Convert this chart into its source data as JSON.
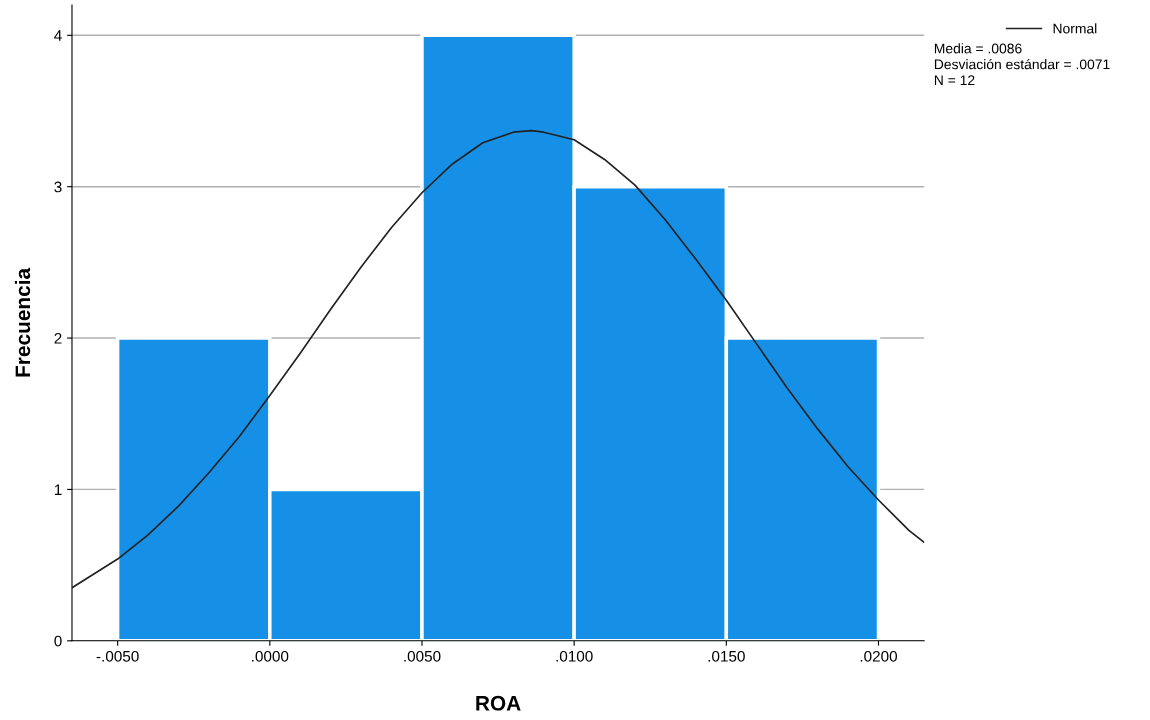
{
  "chart_data": {
    "type": "histogram",
    "xlabel": "ROA",
    "ylabel": "Frecuencia",
    "bins": [
      -0.005,
      0.0,
      0.005,
      0.01,
      0.015,
      0.02
    ],
    "values": [
      2,
      1,
      4,
      3,
      2
    ],
    "color": "#1590e6",
    "xlim": [
      -0.0065,
      0.0215
    ],
    "xticks": [
      {
        "value": -0.005,
        "label": "-.0050"
      },
      {
        "value": 0.0,
        "label": ".0000"
      },
      {
        "value": 0.005,
        "label": ".0050"
      },
      {
        "value": 0.01,
        "label": ".0100"
      },
      {
        "value": 0.015,
        "label": ".0150"
      },
      {
        "value": 0.02,
        "label": ".0200"
      }
    ],
    "ylim": [
      0,
      4.2
    ],
    "yticks": [
      0,
      1,
      2,
      3,
      4
    ],
    "grid": "y",
    "legend": "top right",
    "series": [
      {
        "type": "line",
        "name": "Normal",
        "color": "#222222",
        "x": [
          -0.0065,
          -0.005,
          -0.004,
          -0.003,
          -0.002,
          -0.001,
          0.0,
          0.001,
          0.002,
          0.003,
          0.004,
          0.005,
          0.006,
          0.007,
          0.008,
          0.0086,
          0.009,
          0.01,
          0.011,
          0.012,
          0.013,
          0.014,
          0.015,
          0.016,
          0.017,
          0.018,
          0.019,
          0.02,
          0.021,
          0.0215
        ],
        "values": [
          0.35,
          0.54,
          0.7,
          0.89,
          1.11,
          1.35,
          1.62,
          1.9,
          2.19,
          2.47,
          2.73,
          2.96,
          3.15,
          3.29,
          3.36,
          3.37,
          3.36,
          3.31,
          3.18,
          3.01,
          2.78,
          2.52,
          2.25,
          1.96,
          1.67,
          1.4,
          1.15,
          0.93,
          0.73,
          0.65
        ]
      }
    ],
    "annotations": [
      "Media = .0086",
      "Desviación estándar = .0071",
      "N = 12"
    ]
  }
}
